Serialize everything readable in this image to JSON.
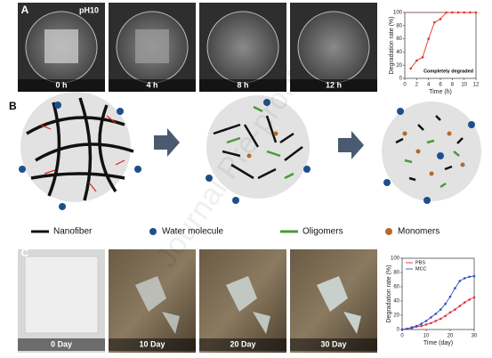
{
  "panels": {
    "a": {
      "label": "A",
      "ph": "pH10",
      "captions": [
        "0 h",
        "4 h",
        "8 h",
        "12 h"
      ]
    },
    "b": {
      "label": "B",
      "legend": [
        "Nanofiber",
        "Water molecule",
        "Oligomers",
        "Monomers"
      ]
    },
    "c": {
      "label": "C",
      "captions": [
        "0 Day",
        "10 Day",
        "20 Day",
        "30 Day"
      ]
    }
  },
  "watermark": "Journal Pre-proof",
  "chart_data": [
    {
      "type": "line",
      "x": [
        1,
        2,
        3,
        4,
        5,
        6,
        7,
        8,
        9,
        10,
        11,
        12
      ],
      "series": [
        {
          "color": "#e03030",
          "values": [
            15,
            27,
            32,
            60,
            85,
            90,
            100,
            100,
            100,
            100,
            100,
            100
          ]
        }
      ],
      "xlim": [
        0,
        12
      ],
      "xticks": [
        0,
        2,
        4,
        6,
        8,
        10,
        12
      ],
      "ylim": [
        0,
        100
      ],
      "yticks": [
        0,
        20,
        40,
        60,
        80,
        100
      ],
      "xlabel": "Time (h)",
      "ylabel": "Degradation rate (%)",
      "annotation": "Completely degraded",
      "reference_line": 100
    },
    {
      "type": "line",
      "x": [
        0,
        2,
        4,
        6,
        8,
        10,
        12,
        14,
        16,
        18,
        20,
        22,
        24,
        26,
        28,
        30
      ],
      "series": [
        {
          "name": "PBS",
          "color": "#e03040",
          "values": [
            0,
            1,
            2,
            4,
            5,
            7,
            9,
            12,
            15,
            19,
            24,
            28,
            33,
            38,
            42,
            45
          ]
        },
        {
          "name": "MCC",
          "color": "#3050c0",
          "values": [
            0,
            1,
            3,
            5,
            8,
            12,
            17,
            22,
            28,
            36,
            46,
            58,
            68,
            72,
            74,
            75
          ]
        }
      ],
      "xlim": [
        0,
        30
      ],
      "xticks": [
        0,
        10,
        20,
        30
      ],
      "ylim": [
        0,
        100
      ],
      "yticks": [
        0,
        20,
        40,
        60,
        80,
        100
      ],
      "xlabel": "Time (day)",
      "ylabel": "Degradation rate (%)",
      "legend": "upper left"
    }
  ]
}
